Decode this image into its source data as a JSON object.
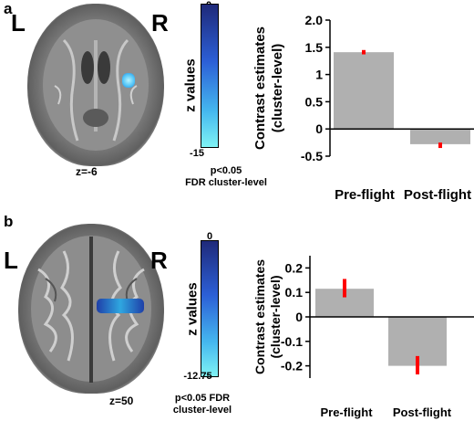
{
  "panels": [
    {
      "label": "a",
      "left_letter": "L",
      "right_letter": "R",
      "slice_label": "z=-6",
      "colorbar": {
        "top": "0",
        "bottom": "-15",
        "title": "z values"
      },
      "threshold_line1": "p<0.05",
      "threshold_line2": "FDR cluster-level",
      "colors": {
        "cbar_top": "#1f2a7a",
        "cbar_bottom": "#7ff2f4",
        "blob": "#4fc3f7"
      }
    },
    {
      "label": "b",
      "left_letter": "L",
      "right_letter": "R",
      "slice_label": "z=50",
      "colorbar": {
        "top": "0",
        "bottom": "-12.75",
        "title": "z values"
      },
      "threshold_line1": "p<0.05 FDR",
      "threshold_line2": "cluster-level",
      "colors": {
        "cbar_top": "#1f2a7a",
        "cbar_bottom": "#7ff2f4",
        "blob": "#3a7bd5"
      }
    }
  ],
  "chart_data": [
    {
      "type": "bar",
      "categories": [
        "Pre-flight",
        "Post-flight"
      ],
      "values": [
        1.41,
        -0.28
      ],
      "errors": [
        [
          1.37,
          1.45
        ],
        [
          -0.35,
          -0.25
        ]
      ],
      "ylabel": "Contrast estimates\n(cluster-level)",
      "ylim": [
        -0.5,
        2.0
      ],
      "yticks": [
        -0.5,
        0,
        0.5,
        1,
        1.5,
        2
      ],
      "ytick_labels": [
        "-0.5",
        "0",
        "0.5",
        "1",
        "1.5",
        "2.0"
      ],
      "bar_color": "#b0b0b0",
      "error_color": "#ff0000",
      "grid": false
    },
    {
      "type": "bar",
      "categories": [
        "Pre-flight",
        "Post-flight"
      ],
      "values": [
        0.115,
        -0.2
      ],
      "errors": [
        [
          0.08,
          0.155
        ],
        [
          -0.235,
          -0.16
        ]
      ],
      "ylabel": "Contrast estimates\n(cluster-level)",
      "ylim": [
        -0.25,
        0.25
      ],
      "yticks": [
        -0.2,
        -0.1,
        0,
        0.1,
        0.2
      ],
      "ytick_labels": [
        "-0.2",
        "-0.1",
        "0",
        "0.1",
        "0.2"
      ],
      "bar_color": "#b0b0b0",
      "error_color": "#ff0000",
      "grid": false
    }
  ]
}
